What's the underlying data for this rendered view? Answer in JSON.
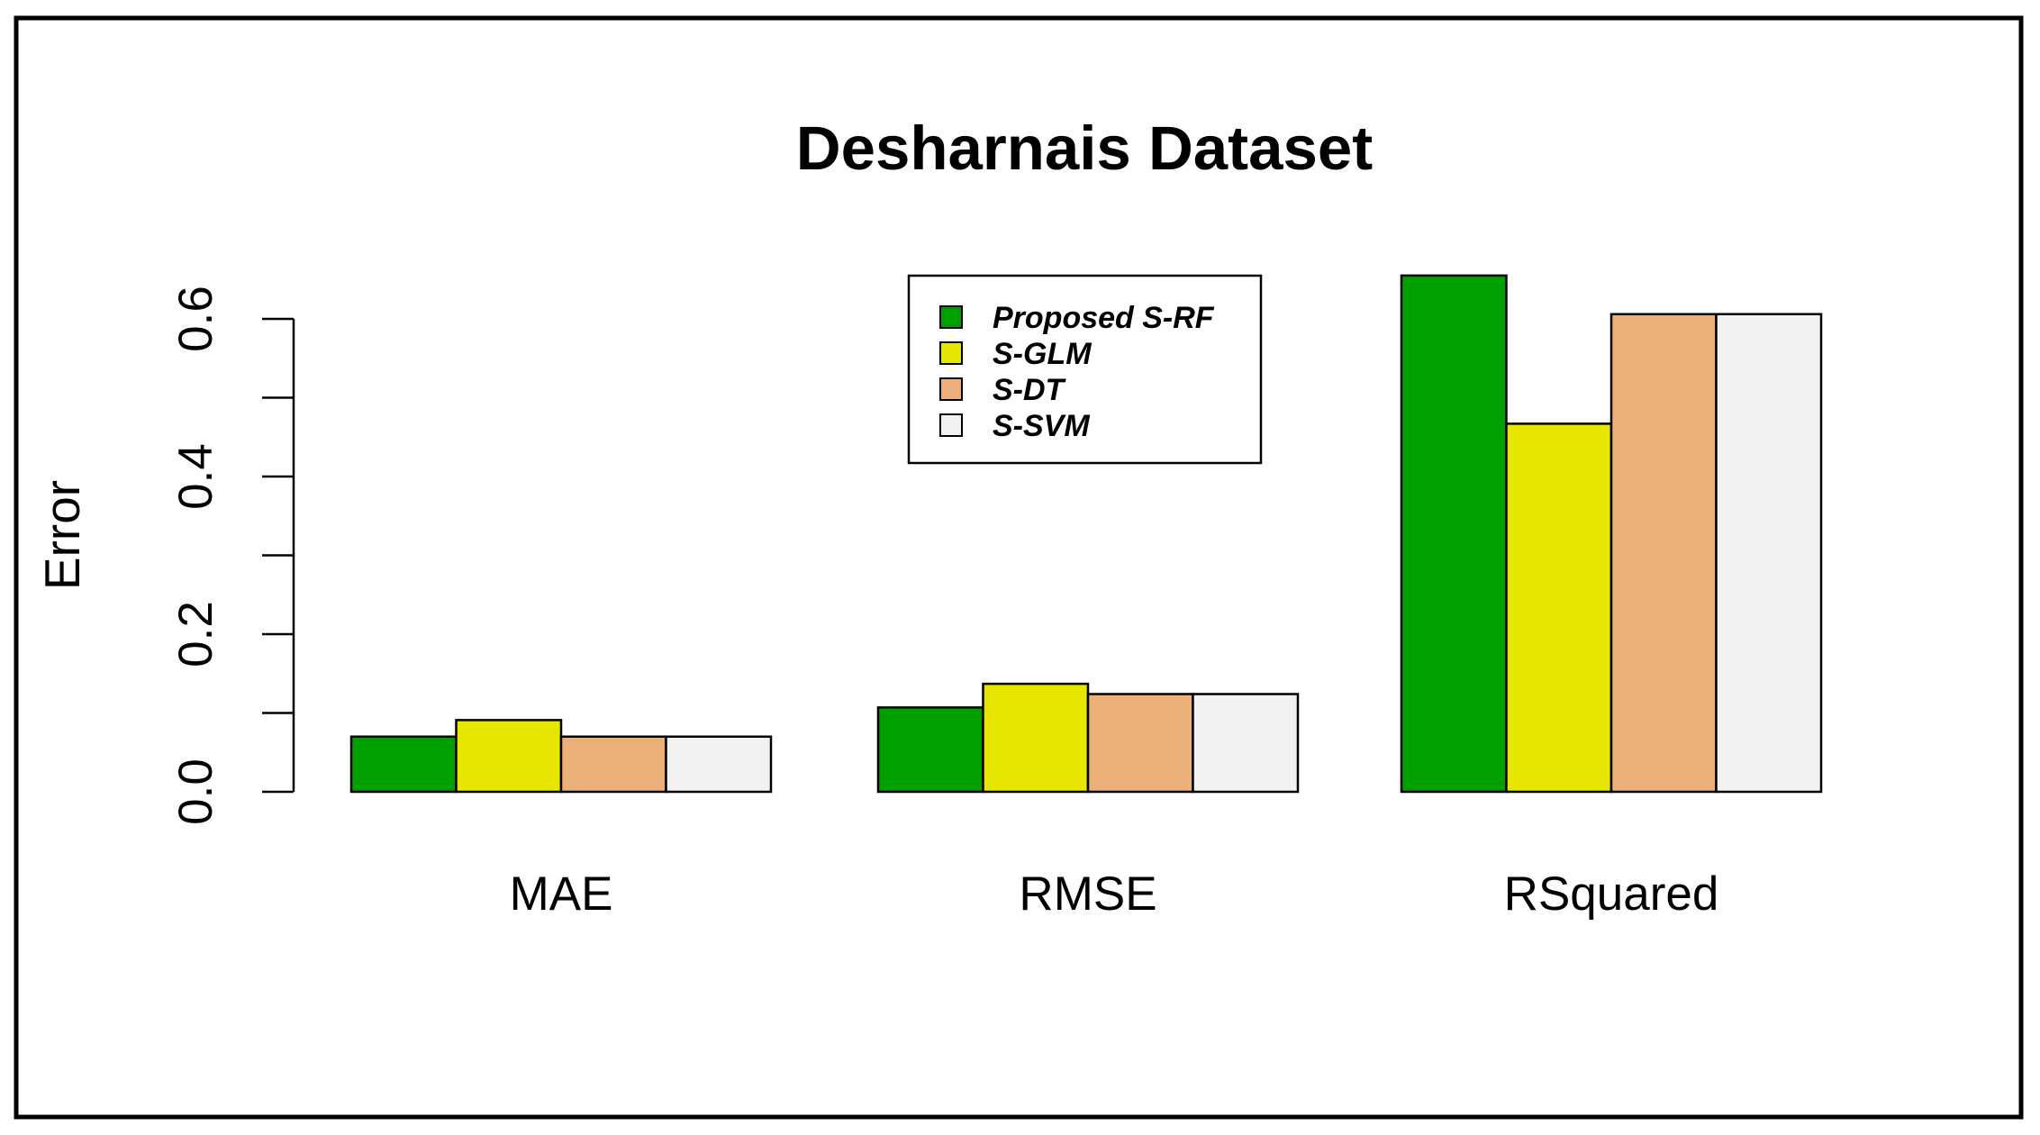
{
  "chart_data": {
    "type": "bar",
    "title": "Desharnais Dataset",
    "xlabel": "",
    "ylabel": "Error",
    "ylim": [
      0,
      0.6
    ],
    "yticks": [
      "0.0",
      "0.2",
      "0.4",
      "0.6"
    ],
    "categories": [
      "MAE",
      "RMSE",
      "RSquared"
    ],
    "series": [
      {
        "name": "Proposed S-RF",
        "color": "#00a000",
        "values": [
          0.07,
          0.107,
          0.655
        ]
      },
      {
        "name": "S-GLM",
        "color": "#e6e600",
        "values": [
          0.091,
          0.137,
          0.467
        ]
      },
      {
        "name": "S-DT",
        "color": "#ebb077",
        "values": [
          0.07,
          0.124,
          0.606
        ]
      },
      {
        "name": "S-SVM",
        "color": "#f2f2f2",
        "values": [
          0.07,
          0.124,
          0.606
        ]
      }
    ],
    "legend_position": "top-center",
    "grid": false
  }
}
